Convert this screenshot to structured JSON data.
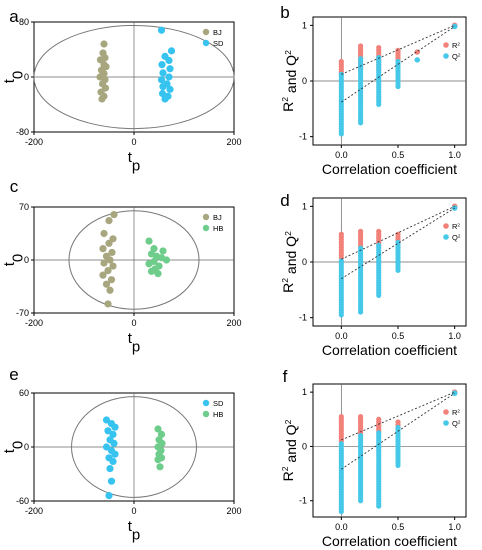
{
  "colors": {
    "BJ": "#a7a67e",
    "SD": "#36c3f0",
    "HB": "#6fcd8c",
    "R2": "#f2817a",
    "Q2": "#46c8e8"
  },
  "chart_data": [
    {
      "panel": "a",
      "type": "scatter",
      "xlabel_main": "t",
      "xlabel_sub": "p",
      "ylabel_main": "t",
      "ylabel_sub": "0",
      "xlim": [
        -200,
        200
      ],
      "ylim": [
        -80,
        80
      ],
      "xticks": [
        "-200",
        "0",
        "200"
      ],
      "yticks": [
        "80",
        "0",
        "-80"
      ],
      "legend": [
        "BJ",
        "SD"
      ],
      "ellipse": {
        "rx": 200,
        "ry": 75
      },
      "series": [
        {
          "name": "BJ",
          "color_key": "BJ",
          "points": [
            [
              -60,
              48
            ],
            [
              -62,
              35
            ],
            [
              -58,
              28
            ],
            [
              -67,
              25
            ],
            [
              -60,
              18
            ],
            [
              -56,
              15
            ],
            [
              -65,
              10
            ],
            [
              -60,
              5
            ],
            [
              -68,
              0
            ],
            [
              -58,
              -4
            ],
            [
              -63,
              -10
            ],
            [
              -57,
              -16
            ],
            [
              -66,
              -22
            ],
            [
              -60,
              -28
            ],
            [
              -64,
              -32
            ]
          ]
        },
        {
          "name": "SD",
          "color_key": "SD",
          "points": [
            [
              55,
              68
            ],
            [
              75,
              38
            ],
            [
              62,
              30
            ],
            [
              70,
              24
            ],
            [
              56,
              18
            ],
            [
              72,
              12
            ],
            [
              58,
              6
            ],
            [
              70,
              0
            ],
            [
              55,
              -4
            ],
            [
              66,
              -10
            ],
            [
              58,
              -14
            ],
            [
              72,
              -18
            ],
            [
              57,
              -24
            ],
            [
              68,
              -28
            ],
            [
              62,
              -32
            ]
          ]
        }
      ]
    },
    {
      "panel": "b",
      "type": "scatter",
      "xlabel": "Correlation coefficient",
      "ylabel_parts": [
        "R",
        "2",
        " and Q",
        "2"
      ],
      "xlim": [
        -0.25,
        1.1
      ],
      "ylim": [
        -1.15,
        1.15
      ],
      "xticks": [
        "0.0",
        "0.5",
        "1.0"
      ],
      "yticks": [
        "1",
        "0",
        "-1"
      ],
      "legend": [
        "R",
        "Q"
      ],
      "legend_sup": "2",
      "R2": {
        "cols": [
          0,
          0.17,
          0.33,
          0.5,
          0.67
        ],
        "top": [
          0.35,
          0.63,
          0.6,
          0.55,
          0.52
        ],
        "bottom": [
          0.12,
          0.2,
          0.2,
          0.38,
          0.52
        ],
        "end": 1.0,
        "intercept": 0.12
      },
      "Q2": {
        "cols": [
          0,
          0.17,
          0.33,
          0.5,
          0.67
        ],
        "top": [
          0.12,
          0.4,
          0.42,
          0.35,
          0.38
        ],
        "bottom": [
          -0.95,
          -0.75,
          -0.42,
          -0.1,
          0.38
        ],
        "end": 0.98,
        "intercept": -0.38
      }
    },
    {
      "panel": "c",
      "type": "scatter",
      "xlabel_main": "t",
      "xlabel_sub": "p",
      "ylabel_main": "t",
      "ylabel_sub": "0",
      "xlim": [
        -200,
        200
      ],
      "ylim": [
        -70,
        70
      ],
      "xticks": [
        "-200",
        "0",
        "200"
      ],
      "yticks": [
        "70",
        "0",
        "-70"
      ],
      "legend": [
        "BJ",
        "HB"
      ],
      "ellipse": {
        "rx": 130,
        "ry": 65
      },
      "series": [
        {
          "name": "BJ",
          "color_key": "BJ",
          "points": [
            [
              -40,
              60
            ],
            [
              -50,
              52
            ],
            [
              -60,
              35
            ],
            [
              -42,
              28
            ],
            [
              -50,
              22
            ],
            [
              -62,
              15
            ],
            [
              -44,
              10
            ],
            [
              -55,
              5
            ],
            [
              -48,
              0
            ],
            [
              -60,
              -4
            ],
            [
              -42,
              -8
            ],
            [
              -52,
              -14
            ],
            [
              -62,
              -20
            ],
            [
              -45,
              -26
            ],
            [
              -55,
              -32
            ],
            [
              -48,
              -40
            ],
            [
              -52,
              -58
            ]
          ]
        },
        {
          "name": "HB",
          "color_key": "HB",
          "points": [
            [
              30,
              25
            ],
            [
              40,
              15
            ],
            [
              58,
              12
            ],
            [
              35,
              8
            ],
            [
              45,
              5
            ],
            [
              55,
              3
            ],
            [
              65,
              0
            ],
            [
              40,
              -2
            ],
            [
              30,
              -5
            ],
            [
              50,
              -8
            ],
            [
              42,
              -12
            ],
            [
              35,
              -15
            ],
            [
              48,
              -18
            ]
          ]
        }
      ]
    },
    {
      "panel": "d",
      "type": "scatter",
      "xlabel": "Correlation coefficient",
      "ylabel_parts": [
        "R",
        "2",
        " and Q",
        "2"
      ],
      "xlim": [
        -0.25,
        1.1
      ],
      "ylim": [
        -1.15,
        1.15
      ],
      "xticks": [
        "0.0",
        "0.5",
        "1.0"
      ],
      "yticks": [
        "1",
        "0",
        "-1"
      ],
      "legend": [
        "R",
        "Q"
      ],
      "legend_sup": "2",
      "R2": {
        "cols": [
          0,
          0.17,
          0.33,
          0.5
        ],
        "top": [
          0.5,
          0.55,
          0.55,
          0.5
        ],
        "bottom": [
          0.08,
          0.28,
          0.3,
          0.35
        ],
        "end": 1.0,
        "intercept": 0.05
      },
      "Q2": {
        "cols": [
          0,
          0.17,
          0.33,
          0.5
        ],
        "top": [
          0.02,
          0.25,
          0.3,
          0.35
        ],
        "bottom": [
          -0.95,
          -0.9,
          -0.6,
          -0.15
        ],
        "end": 0.97,
        "intercept": -0.3
      }
    },
    {
      "panel": "e",
      "type": "scatter",
      "xlabel_main": "t",
      "xlabel_sub": "p",
      "ylabel_main": "t",
      "ylabel_sub": "0",
      "xlim": [
        -200,
        200
      ],
      "ylim": [
        -60,
        60
      ],
      "xticks": [
        "-200",
        "0",
        "200"
      ],
      "yticks": [
        "60",
        "0",
        "-60"
      ],
      "legend": [
        "SD",
        "HB"
      ],
      "ellipse": {
        "rx": 125,
        "ry": 56
      },
      "series": [
        {
          "name": "SD",
          "color_key": "SD",
          "points": [
            [
              -55,
              30
            ],
            [
              -45,
              26
            ],
            [
              -38,
              22
            ],
            [
              -52,
              18
            ],
            [
              -42,
              14
            ],
            [
              -48,
              8
            ],
            [
              -40,
              4
            ],
            [
              -55,
              0
            ],
            [
              -45,
              -4
            ],
            [
              -38,
              -8
            ],
            [
              -50,
              -12
            ],
            [
              -42,
              -16
            ],
            [
              -48,
              -24
            ],
            [
              -45,
              -38
            ],
            [
              -50,
              -54
            ]
          ]
        },
        {
          "name": "HB",
          "color_key": "HB",
          "points": [
            [
              48,
              20
            ],
            [
              55,
              14
            ],
            [
              50,
              8
            ],
            [
              56,
              4
            ],
            [
              48,
              0
            ],
            [
              54,
              -4
            ],
            [
              50,
              -8
            ],
            [
              55,
              -12
            ],
            [
              48,
              -14
            ],
            [
              52,
              -22
            ]
          ]
        }
      ]
    },
    {
      "panel": "f",
      "type": "scatter",
      "xlabel": "Correlation coefficient",
      "ylabel_parts": [
        "R",
        "2",
        " and Q",
        "2"
      ],
      "xlim": [
        -0.25,
        1.1
      ],
      "ylim": [
        -1.3,
        1.15
      ],
      "xticks": [
        "0.0",
        "0.5",
        "1.0"
      ],
      "yticks": [
        "1",
        "0",
        "-1"
      ],
      "legend": [
        "R",
        "Q"
      ],
      "legend_sup": "2",
      "R2": {
        "cols": [
          0,
          0.17,
          0.33,
          0.5
        ],
        "top": [
          0.55,
          0.55,
          0.5,
          0.45
        ],
        "bottom": [
          0.1,
          0.25,
          0.28,
          0.35
        ],
        "end": 1.0,
        "intercept": 0.12
      },
      "Q2": {
        "cols": [
          0,
          0.17,
          0.33,
          0.5
        ],
        "top": [
          0.05,
          0.2,
          0.25,
          0.35
        ],
        "bottom": [
          -1.2,
          -1.0,
          -1.1,
          -0.35
        ],
        "end": 0.98,
        "intercept": -0.42
      }
    }
  ]
}
